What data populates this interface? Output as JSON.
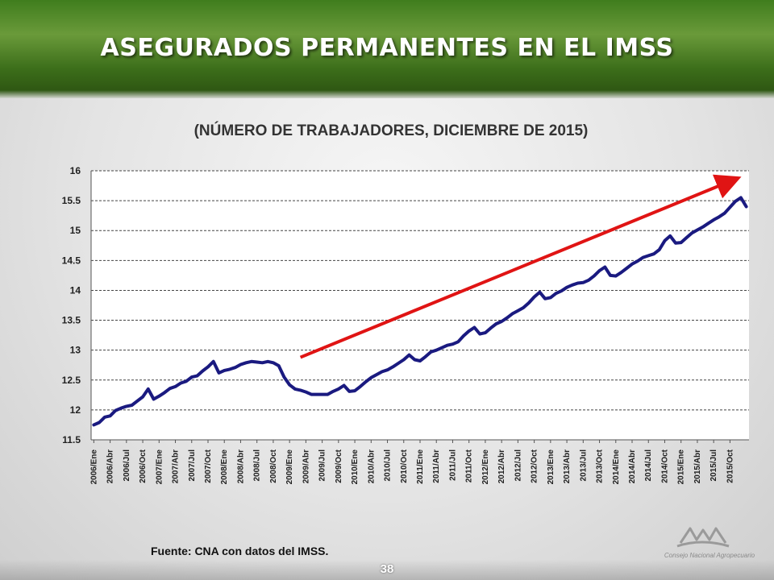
{
  "slide": {
    "title": "ASEGURADOS PERMANENTES EN EL IMSS",
    "subtitle": "(NÚMERO DE TRABAJADORES, DICIEMBRE DE 2015)",
    "source": "Fuente: CNA con datos del IMSS.",
    "page_number": "38",
    "logo_text": "Consejo Nacional Agropecuario"
  },
  "colors": {
    "series": "#1a1a80",
    "trend_arrow": "#e01414",
    "header_green": "#3f7d1d",
    "plot_background": "#ffffff"
  },
  "chart_data": {
    "type": "line",
    "ylim": [
      11.5,
      16
    ],
    "y_ticks": [
      "16",
      "15.5",
      "15",
      "14.5",
      "14",
      "13.5",
      "13",
      "12.5",
      "12",
      "11.5"
    ],
    "grid": "horizontal dashed",
    "x_tick_labels": [
      "2006/Ene",
      "2006/Abr",
      "2006/Jul",
      "2006/Oct",
      "2007/Ene",
      "2007/Abr",
      "2007/Jul",
      "2007/Oct",
      "2008/Ene",
      "2008/Abr",
      "2008/Jul",
      "2008/Oct",
      "2009/Ene",
      "2009/Abr",
      "2009/Jul",
      "2009/Oct",
      "2010/Ene",
      "2010/Abr",
      "2010/Jul",
      "2010/Oct",
      "2011/Ene",
      "2011/Abr",
      "2011/Jul",
      "2011/Oct",
      "2012/Ene",
      "2012/Abr",
      "2012/Jul",
      "2012/Oct",
      "2013/Ene",
      "2013/Abr",
      "2013/Jul",
      "2013/Oct",
      "2014/Ene",
      "2014/Abr",
      "2014/Jul",
      "2014/Oct",
      "2015/Ene",
      "2015/Abr",
      "2015/Jul",
      "2015/Oct"
    ],
    "series": [
      {
        "values": [
          11.75,
          11.79,
          11.88,
          11.9,
          11.99,
          12.03,
          12.06,
          12.08,
          12.15,
          12.22,
          12.35,
          12.18,
          12.23,
          12.29,
          12.36,
          12.39,
          12.45,
          12.48,
          12.55,
          12.57,
          12.65,
          12.72,
          12.81,
          12.62,
          12.66,
          12.68,
          12.71,
          12.76,
          12.79,
          12.81,
          12.8,
          12.79,
          12.81,
          12.79,
          12.74,
          12.55,
          12.42,
          12.35,
          12.33,
          12.3,
          12.26,
          12.26,
          12.26,
          12.26,
          12.31,
          12.35,
          12.41,
          12.31,
          12.32,
          12.39,
          12.47,
          12.54,
          12.59,
          12.64,
          12.67,
          12.72,
          12.78,
          12.84,
          12.92,
          12.84,
          12.82,
          12.89,
          12.97,
          13.0,
          13.04,
          13.08,
          13.1,
          13.14,
          13.24,
          13.32,
          13.38,
          13.27,
          13.29,
          13.37,
          13.44,
          13.48,
          13.54,
          13.61,
          13.66,
          13.71,
          13.79,
          13.89,
          13.97,
          13.86,
          13.88,
          13.95,
          13.99,
          14.05,
          14.09,
          14.12,
          14.13,
          14.17,
          14.24,
          14.33,
          14.39,
          14.25,
          14.24,
          14.3,
          14.37,
          14.44,
          14.49,
          14.55,
          14.58,
          14.61,
          14.68,
          14.83,
          14.91,
          14.79,
          14.8,
          14.88,
          14.96,
          15.01,
          15.06,
          15.12,
          15.18,
          15.23,
          15.29,
          15.39,
          15.49,
          15.55,
          15.4
        ]
      }
    ],
    "trend_arrow": {
      "from_index": 38,
      "from_value": 12.88,
      "to_index": 118,
      "to_value": 15.86
    }
  }
}
